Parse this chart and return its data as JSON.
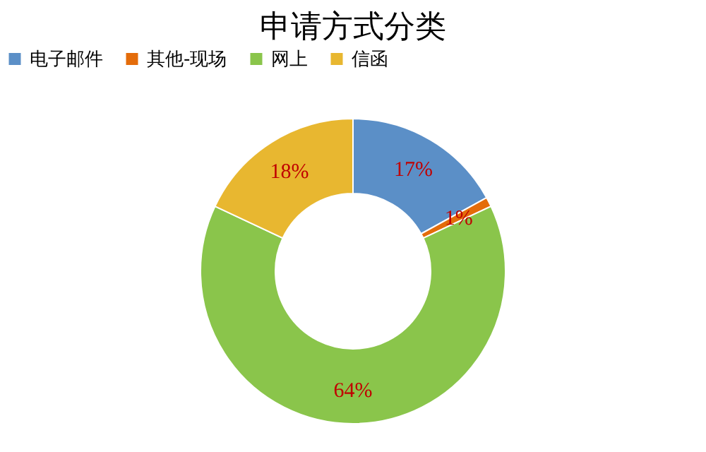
{
  "chart_data": {
    "type": "donut",
    "title": "申请方式分类",
    "categories": [
      "电子邮件",
      "其他-现场",
      "网上",
      "信函"
    ],
    "values": [
      17,
      1,
      64,
      18
    ],
    "value_labels": [
      "17%",
      "1%",
      "64%",
      "18%"
    ],
    "colors": [
      "#5b8fc7",
      "#e46c0a",
      "#8ac54b",
      "#e8b730"
    ],
    "legend": "top"
  }
}
